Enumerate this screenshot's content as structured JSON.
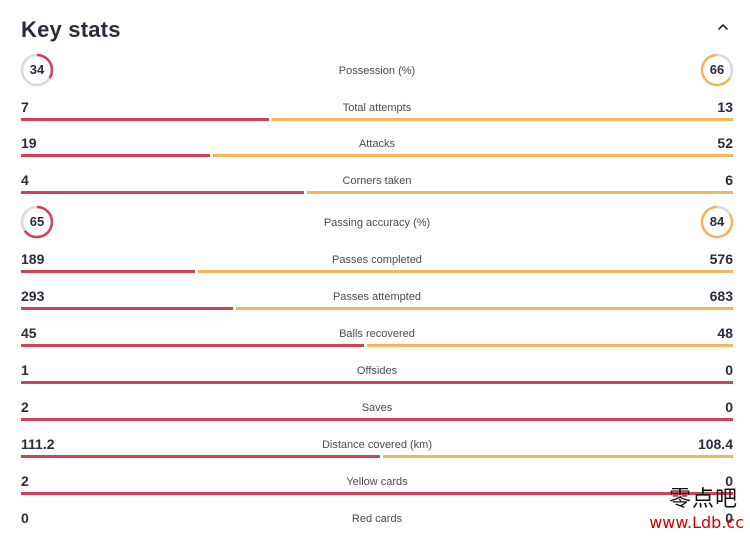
{
  "header": {
    "title": "Key stats",
    "collapse_icon": "chevron-up-icon"
  },
  "colors": {
    "home": "#d3405a",
    "away": "#f2b75b",
    "ring_track": "#d9d9de"
  },
  "possession": {
    "label": "Possession (%)",
    "home": "34",
    "away": "66"
  },
  "passing_accuracy": {
    "label": "Passing accuracy (%)",
    "home": "65",
    "away": "84"
  },
  "stats": [
    {
      "label": "Total attempts",
      "home": "7",
      "away": "13"
    },
    {
      "label": "Attacks",
      "home": "19",
      "away": "52"
    },
    {
      "label": "Corners taken",
      "home": "4",
      "away": "6"
    },
    {
      "label": "Passes completed",
      "home": "189",
      "away": "576"
    },
    {
      "label": "Passes attempted",
      "home": "293",
      "away": "683"
    },
    {
      "label": "Balls recovered",
      "home": "45",
      "away": "48"
    },
    {
      "label": "Offsides",
      "home": "1",
      "away": "0"
    },
    {
      "label": "Saves",
      "home": "2",
      "away": "0"
    },
    {
      "label": "Distance covered (km)",
      "home": "111.2",
      "away": "108.4"
    },
    {
      "label": "Yellow cards",
      "home": "2",
      "away": "0"
    },
    {
      "label": "Red cards",
      "home": "0",
      "away": "0"
    }
  ],
  "watermark": {
    "chinese": "零点吧",
    "url": "www.Ldb.cc"
  }
}
